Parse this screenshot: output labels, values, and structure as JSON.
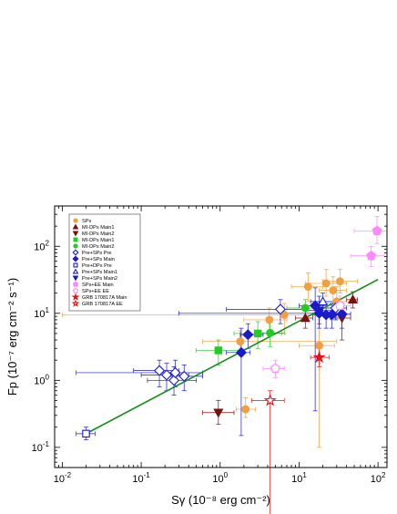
{
  "chart_data": {
    "type": "scatter",
    "title": "",
    "xlabel": "Sγ (10⁻⁸ erg cm⁻²)",
    "ylabel": "Fp (10⁻⁷ erg cm⁻² s⁻¹)",
    "x_scale": "log",
    "y_scale": "log",
    "xlim": [
      0.008,
      130
    ],
    "ylim": [
      0.05,
      400
    ],
    "grid": false,
    "legend_position": "top-left",
    "x_ticks": [
      {
        "value": 0.01,
        "base": "10",
        "exp": "-2"
      },
      {
        "value": 0.1,
        "base": "10",
        "exp": "-1"
      },
      {
        "value": 1,
        "base": "10",
        "exp": "0"
      },
      {
        "value": 10,
        "base": "10",
        "exp": "1"
      },
      {
        "value": 100,
        "base": "10",
        "exp": "2"
      }
    ],
    "y_ticks": [
      {
        "value": 0.1,
        "base": "10",
        "exp": "-1"
      },
      {
        "value": 1,
        "base": "10",
        "exp": "0"
      },
      {
        "value": 10,
        "base": "10",
        "exp": "1"
      },
      {
        "value": 100,
        "base": "10",
        "exp": "2"
      }
    ],
    "fit_line": {
      "color": "#1a8a1a",
      "x": [
        0.02,
        100
      ],
      "y": [
        0.16,
        32
      ]
    },
    "series": [
      {
        "name": "SPs",
        "color": "#f0a040",
        "marker": "circle",
        "filled": true,
        "points": [
          {
            "x": 2.1,
            "y": 0.37,
            "xerr": [
              1.6,
              2.8
            ],
            "yerr": [
              0.28,
              0.55
            ]
          },
          {
            "x": 1.8,
            "y": 3.8,
            "xerr": [
              0.6,
              30
            ],
            "yerr": [
              2.5,
              5.5
            ]
          },
          {
            "x": 4.2,
            "y": 8.0,
            "xerr": [
              2.0,
              7.0
            ],
            "yerr": [
              5,
              12
            ]
          },
          {
            "x": 6.5,
            "y": 9.5,
            "xerr": [
              0.01,
              45
            ],
            "yerr": [
              5,
              14
            ]
          },
          {
            "x": 13,
            "y": 25,
            "xerr": [
              8,
              20
            ],
            "yerr": [
              15,
              40
            ]
          },
          {
            "x": 22,
            "y": 28,
            "xerr": [
              12,
              40
            ],
            "yerr": [
              18,
              45
            ]
          },
          {
            "x": 33,
            "y": 30,
            "xerr": [
              20,
              55
            ],
            "yerr": [
              20,
              45
            ]
          },
          {
            "x": 27,
            "y": 22,
            "xerr": [
              18,
              40
            ],
            "yerr": [
              12,
              35
            ]
          },
          {
            "x": 18,
            "y": 3.3,
            "xerr": [
              10,
              28
            ],
            "yerr": [
              0.1,
              8
            ]
          },
          {
            "x": 30,
            "y": 15,
            "xerr": [
              20,
              45
            ],
            "yerr": [
              8,
              25
            ]
          }
        ]
      },
      {
        "name": "MI-DPs Main1",
        "color": "#7a1010",
        "marker": "triangle-up",
        "filled": true,
        "points": [
          {
            "x": 48,
            "y": 16,
            "xerr": [
              40,
              55
            ],
            "yerr": [
              12,
              21
            ]
          },
          {
            "x": 12,
            "y": 8.5,
            "xerr": [
              9,
              15
            ],
            "yerr": [
              6,
              11
            ]
          }
        ]
      },
      {
        "name": "MI-DPs Main2",
        "color": "#7a1010",
        "marker": "triangle-down",
        "filled": true,
        "points": [
          {
            "x": 0.95,
            "y": 0.33,
            "xerr": [
              0.6,
              1.5
            ],
            "yerr": [
              0.22,
              0.5
            ]
          },
          {
            "x": 35,
            "y": 8.5,
            "xerr": [
              25,
              45
            ],
            "yerr": [
              4,
              14
            ]
          }
        ]
      },
      {
        "name": "MI-DPs Main1",
        "color": "#22cc22",
        "marker": "square",
        "filled": true,
        "points": [
          {
            "x": 0.95,
            "y": 2.8,
            "xerr": [
              0.5,
              2.0
            ],
            "yerr": [
              1.7,
              4.0
            ]
          },
          {
            "x": 3.0,
            "y": 5.0,
            "xerr": [
              1.5,
              6.0
            ],
            "yerr": [
              3.0,
              7.5
            ]
          }
        ]
      },
      {
        "name": "MI-DPs Main2",
        "color": "#22cc22",
        "marker": "circle",
        "filled": true,
        "points": [
          {
            "x": 4.3,
            "y": 5.1,
            "xerr": [
              3.0,
              6.5
            ],
            "yerr": [
              3.2,
              7.5
            ]
          },
          {
            "x": 12,
            "y": 12,
            "xerr": [
              7,
              18
            ],
            "yerr": [
              8,
              16
            ]
          }
        ]
      },
      {
        "name": "Pre+SPs Pre",
        "color": "#1a1ac8",
        "marker": "diamond",
        "filled": false,
        "points": [
          {
            "x": 0.17,
            "y": 1.4,
            "xerr": [
              0.08,
              0.3
            ],
            "yerr": [
              0.8,
              2.0
            ]
          },
          {
            "x": 0.21,
            "y": 1.2,
            "xerr": [
              0.1,
              0.4
            ],
            "yerr": [
              0.7,
              1.8
            ]
          },
          {
            "x": 0.26,
            "y": 1.0,
            "xerr": [
              0.12,
              0.5
            ],
            "yerr": [
              0.6,
              1.6
            ]
          },
          {
            "x": 0.27,
            "y": 1.3,
            "xerr": [
              0.015,
              0.6
            ],
            "yerr": [
              0.8,
              2.0
            ]
          },
          {
            "x": 0.35,
            "y": 1.15,
            "xerr": [
              0.2,
              0.6
            ],
            "yerr": [
              0.7,
              1.7
            ]
          },
          {
            "x": 5.8,
            "y": 11.5,
            "xerr": [
              1.2,
              12
            ],
            "yerr": [
              7,
              16
            ]
          },
          {
            "x": 29,
            "y": 12,
            "xerr": [
              18,
              40
            ],
            "yerr": [
              8,
              16
            ]
          }
        ]
      },
      {
        "name": "Pre+SPs Main",
        "color": "#1a1ac8",
        "marker": "diamond",
        "filled": true,
        "points": [
          {
            "x": 1.85,
            "y": 2.6,
            "xerr": [
              1.2,
              2.4
            ],
            "yerr": [
              0.15,
              6.0
            ]
          },
          {
            "x": 2.25,
            "y": 4.8,
            "xerr": [
              1.8,
              3.5
            ],
            "yerr": [
              3.0,
              7.0
            ]
          },
          {
            "x": 16,
            "y": 13,
            "xerr": [
              10,
              22
            ],
            "yerr": [
              0.35,
              24
            ]
          },
          {
            "x": 18,
            "y": 10,
            "xerr": [
              0.3,
              25
            ],
            "yerr": [
              6,
              18
            ]
          },
          {
            "x": 22,
            "y": 9.5,
            "xerr": [
              15,
              30
            ],
            "yerr": [
              6,
              14
            ]
          },
          {
            "x": 26,
            "y": 9.5,
            "xerr": [
              18,
              34
            ],
            "yerr": [
              6,
              14
            ]
          },
          {
            "x": 35,
            "y": 9.8,
            "xerr": [
              25,
              45
            ],
            "yerr": [
              6,
              14
            ]
          }
        ]
      },
      {
        "name": "Pre+DPs Pre",
        "color": "#1a1ac8",
        "marker": "square",
        "filled": false,
        "points": [
          {
            "x": 0.02,
            "y": 0.16,
            "xerr": [
              0.015,
              0.026
            ],
            "yerr": [
              0.13,
              0.2
            ]
          }
        ]
      },
      {
        "name": "Pre+SPs Main1",
        "color": "#1a1ac8",
        "marker": "triangle-up",
        "filled": false,
        "points": [
          {
            "x": 20,
            "y": 15,
            "xerr": [
              14,
              28
            ],
            "yerr": [
              10,
              20
            ]
          }
        ]
      },
      {
        "name": "Pre+SPs Main2",
        "color": "#1a1ac8",
        "marker": "triangle-down",
        "filled": true,
        "points": [
          {
            "x": 18,
            "y": 11,
            "xerr": [
              12,
              26
            ],
            "yerr": [
              7,
              15
            ]
          }
        ]
      },
      {
        "name": "SPs+EE Main",
        "color": "#ff88ff",
        "marker": "pentagon",
        "filled": true,
        "points": [
          {
            "x": 97,
            "y": 170,
            "xerr": [
              50,
              130
            ],
            "yerr": [
              110,
              280
            ]
          },
          {
            "x": 82,
            "y": 72,
            "xerr": [
              45,
              120
            ],
            "yerr": [
              50,
              100
            ]
          }
        ]
      },
      {
        "name": "SPs+EE EE",
        "color": "#ff88ff",
        "marker": "pentagon",
        "filled": false,
        "points": [
          {
            "x": 5.0,
            "y": 1.5,
            "xerr": [
              3.5,
              6.5
            ],
            "yerr": [
              1.1,
              2.0
            ]
          },
          {
            "x": 33,
            "y": 13,
            "xerr": [
              22,
              45
            ],
            "yerr": [
              9,
              18
            ]
          }
        ]
      },
      {
        "name": "GRB 170817A Main",
        "color": "#e81010",
        "marker": "star",
        "filled": true,
        "points": [
          {
            "x": 18,
            "y": 2.2,
            "xerr": [
              14,
              24
            ],
            "yerr": [
              1.6,
              3.0
            ]
          }
        ]
      },
      {
        "name": "GRB 170817A EE",
        "color": "#e81010",
        "marker": "star",
        "filled": false,
        "points": [
          {
            "x": 4.3,
            "y": 0.5,
            "xerr": [
              2.5,
              6.5
            ],
            "yerr": [
              0.01,
              0.7
            ]
          }
        ]
      }
    ]
  }
}
